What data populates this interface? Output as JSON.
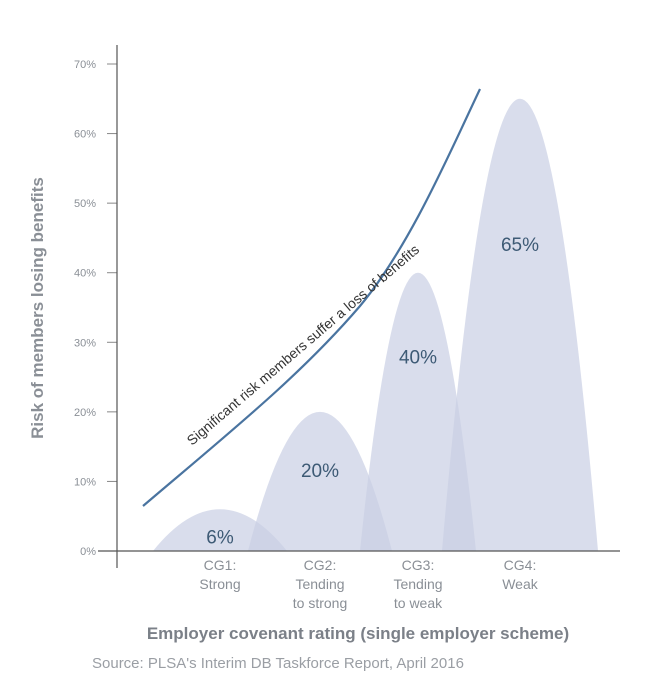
{
  "chart_data": {
    "type": "area",
    "title": "",
    "xlabel": "Employer covenant rating (single employer scheme)",
    "ylabel": "Risk of members losing benefits",
    "ylim": [
      0,
      70
    ],
    "yticks": [
      "0%",
      "10%",
      "20%",
      "30%",
      "40%",
      "50%",
      "60%",
      "70%"
    ],
    "categories": [
      [
        "CG1:",
        "Strong"
      ],
      [
        "CG2:",
        "Tending",
        "to strong"
      ],
      [
        "CG3:",
        "Tending",
        "to weak"
      ],
      [
        "CG4:",
        "Weak"
      ]
    ],
    "values": [
      6,
      20,
      40,
      65
    ],
    "value_labels": [
      "6%",
      "20%",
      "40%",
      "65%"
    ],
    "annotation": "Significant risk members suffer a loss of benefits",
    "source": "Source: PLSA's Interim DB Taskforce Report, April 2016",
    "colors": {
      "hump": "#c9cfe4",
      "curve": "#4a74a0",
      "axis": "#555555"
    }
  }
}
